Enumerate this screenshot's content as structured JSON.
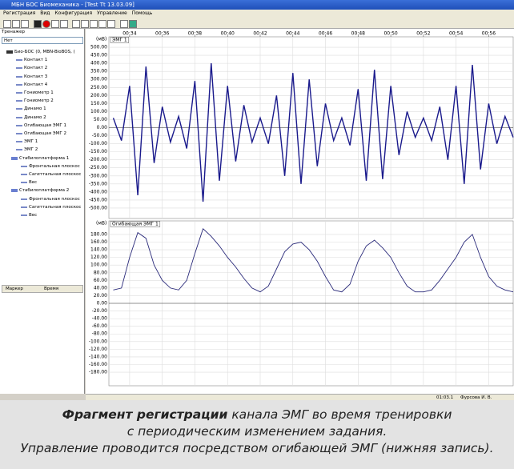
{
  "window": {
    "title": "МБН БОС Биомеханика - [Test Tt 13.03.09]",
    "menu": [
      "Регистрация",
      "Вид",
      "Конфигурация",
      "Управление",
      "Помощь"
    ]
  },
  "left_panel": {
    "label": "Тренажер",
    "select": "Нет",
    "tree": [
      {
        "label": "Био-БОС (0, MBN-BioBOS, (",
        "children": [
          "Контакт 1",
          "Контакт 2",
          "Контакт 3",
          "Контакт 4",
          "Гониометр 1",
          "Гониометр 2",
          "Динамо 1",
          "Динамо 2",
          "Огибающая ЭМГ 1",
          "Огибающая ЭМГ 2",
          "ЭМГ 1",
          "ЭМГ 2"
        ]
      },
      {
        "label": "Стабилоплатформа 1",
        "children": [
          "Фронтальная плоскос",
          "Сагиттальная плоскос",
          "Вес"
        ]
      },
      {
        "label": "Стабилоплатформа 2",
        "children": [
          "Фронтальная плоскос",
          "Сагиттальная плоскос",
          "Вес"
        ]
      }
    ],
    "marker_columns": [
      "Маркер",
      "Время"
    ]
  },
  "chart_data": [
    {
      "type": "line",
      "unit": "(мВ)",
      "channel": "ЭМГ 1",
      "color": "#1a1a8c",
      "grid": true,
      "x": [
        33,
        33.5,
        34,
        34.5,
        35,
        35.5,
        36,
        36.5,
        37,
        37.5,
        38,
        38.5,
        39,
        39.5,
        40,
        40.5,
        41,
        41.5,
        42,
        42.5,
        43,
        43.5,
        44,
        44.5,
        45,
        45.5,
        46,
        46.5,
        47,
        47.5,
        48,
        48.5,
        49,
        49.5,
        50,
        50.5,
        51,
        51.5,
        52,
        52.5,
        53,
        53.5,
        54,
        54.5,
        55,
        55.5,
        56,
        56.5,
        57,
        57.5
      ],
      "values": [
        60,
        -80,
        260,
        -420,
        380,
        -220,
        130,
        -90,
        70,
        -130,
        290,
        -460,
        400,
        -330,
        260,
        -210,
        140,
        -90,
        60,
        -100,
        200,
        -300,
        340,
        -350,
        300,
        -240,
        150,
        -80,
        60,
        -110,
        240,
        -330,
        360,
        -320,
        260,
        -170,
        100,
        -60,
        60,
        -80,
        130,
        -200,
        260,
        -350,
        390,
        -260,
        150,
        -100,
        70,
        -60
      ],
      "xlim": [
        32.73,
        57.5
      ],
      "xticks": [
        {
          "value": 34,
          "label": "00:34"
        },
        {
          "value": 36,
          "label": "00:36"
        },
        {
          "value": 38,
          "label": "00:38"
        },
        {
          "value": 40,
          "label": "00:40"
        },
        {
          "value": 42,
          "label": "00:42"
        },
        {
          "value": 44,
          "label": "00:44"
        },
        {
          "value": 46,
          "label": "00:46"
        },
        {
          "value": 48,
          "label": "00:48"
        },
        {
          "value": 50,
          "label": "00:50"
        },
        {
          "value": 52,
          "label": "00:52"
        },
        {
          "value": 54,
          "label": "00:54"
        },
        {
          "value": 56,
          "label": "00:56"
        }
      ],
      "ylim": [
        -550,
        550
      ],
      "yticks": [
        {
          "value": 500,
          "label": "500.00"
        },
        {
          "value": 450,
          "label": "450.00"
        },
        {
          "value": 400,
          "label": "400.00"
        },
        {
          "value": 350,
          "label": "350.00"
        },
        {
          "value": 300,
          "label": "300.00"
        },
        {
          "value": 250,
          "label": "250.00"
        },
        {
          "value": 200,
          "label": "200.00"
        },
        {
          "value": 150,
          "label": "150.00"
        },
        {
          "value": 100,
          "label": "100.00"
        },
        {
          "value": 50,
          "label": "50.00"
        },
        {
          "value": 0,
          "label": "0.00"
        },
        {
          "value": -50,
          "label": "-50.00"
        },
        {
          "value": -100,
          "label": "-100.00"
        },
        {
          "value": -150,
          "label": "-150.00"
        },
        {
          "value": -200,
          "label": "-200.00"
        },
        {
          "value": -250,
          "label": "-250.00"
        },
        {
          "value": -300,
          "label": "-300.00"
        },
        {
          "value": -350,
          "label": "-350.00"
        },
        {
          "value": -400,
          "label": "-400.00"
        },
        {
          "value": -450,
          "label": "-450.00"
        },
        {
          "value": -500,
          "label": "-500.00"
        }
      ]
    },
    {
      "type": "line",
      "unit": "(мВ)",
      "channel": "Огибающая ЭМГ 1",
      "color": "#2a2a7a",
      "grid": true,
      "x": [
        33,
        33.5,
        34,
        34.5,
        35,
        35.5,
        36,
        36.5,
        37,
        37.5,
        38,
        38.5,
        39,
        39.5,
        40,
        40.5,
        41,
        41.5,
        42,
        42.5,
        43,
        43.5,
        44,
        44.5,
        45,
        45.5,
        46,
        46.5,
        47,
        47.5,
        48,
        48.5,
        49,
        49.5,
        50,
        50.5,
        51,
        51.5,
        52,
        52.5,
        53,
        53.5,
        54,
        54.5,
        55,
        55.5,
        56,
        56.5,
        57,
        57.5
      ],
      "values": [
        35,
        40,
        120,
        185,
        170,
        100,
        60,
        40,
        35,
        60,
        130,
        195,
        175,
        150,
        120,
        95,
        65,
        40,
        30,
        45,
        90,
        135,
        155,
        160,
        140,
        110,
        70,
        35,
        30,
        50,
        110,
        150,
        165,
        145,
        120,
        80,
        45,
        30,
        30,
        35,
        60,
        90,
        120,
        160,
        180,
        120,
        70,
        45,
        35,
        30
      ],
      "xlim": [
        32.73,
        57.5
      ],
      "xticks": [
        34,
        36,
        38,
        40,
        42,
        44,
        46,
        48,
        50,
        52,
        54,
        56
      ],
      "ylim": [
        -210,
        210
      ],
      "yticks": [
        {
          "value": 180,
          "label": "180.00"
        },
        {
          "value": 160,
          "label": "160.00"
        },
        {
          "value": 140,
          "label": "140.00"
        },
        {
          "value": 120,
          "label": "120.00"
        },
        {
          "value": 100,
          "label": "100.00"
        },
        {
          "value": 80,
          "label": "80.00"
        },
        {
          "value": 60,
          "label": "60.00"
        },
        {
          "value": 40,
          "label": "40.00"
        },
        {
          "value": 20,
          "label": "20.00"
        },
        {
          "value": 0,
          "label": "0.00"
        },
        {
          "value": -20,
          "label": "-20.00"
        },
        {
          "value": -40,
          "label": "-40.00"
        },
        {
          "value": -60,
          "label": "-60.00"
        },
        {
          "value": -80,
          "label": "-80.00"
        },
        {
          "value": -100,
          "label": "-100.00"
        },
        {
          "value": -120,
          "label": "-120.00"
        },
        {
          "value": -140,
          "label": "-140.00"
        },
        {
          "value": -160,
          "label": "-160.00"
        },
        {
          "value": -180,
          "label": "-180.00"
        }
      ]
    }
  ],
  "status": {
    "time": "01:03.1",
    "user": "Фурсова И. В."
  },
  "caption": {
    "bold": "Фрагмент регистрации",
    "line1": " канала ЭМГ во время тренировки",
    "line2": "с периодическим изменением задания.",
    "line3": "Управление проводится посредством огибающей ЭМГ (нижняя запись)."
  }
}
